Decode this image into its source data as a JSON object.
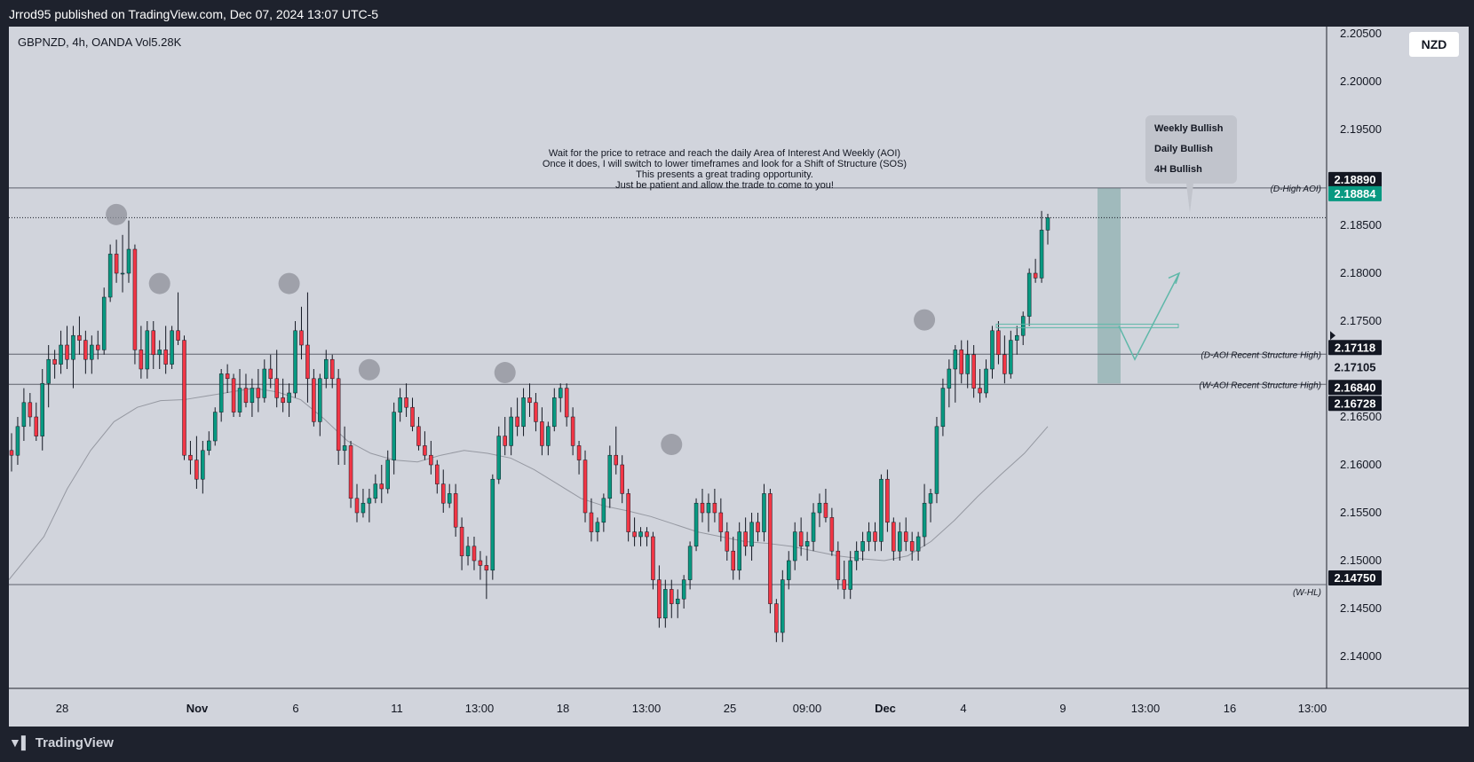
{
  "header": {
    "published_by": "Jrrod95 published on TradingView.com, Dec 07, 2024 13:07 UTC-5"
  },
  "symbol_line": "GBPNZD, 4h, OANDA  Vol5.28K",
  "currency": "NZD",
  "footer": {
    "brand": "TradingView",
    "brand_icon": "tradingview-logo-icon"
  },
  "colors": {
    "bull": "#089981",
    "bear": "#f23645",
    "background": "#d1d4dc",
    "frame": "#1e222d",
    "ma": "#9598a1",
    "arrow": "#5fb8a9",
    "zone": "#7fa9a6"
  },
  "chart_data": {
    "type": "candlestick",
    "title": "",
    "ylim": [
      2.1385,
      2.2075
    ],
    "y_ticks": [
      "2.20500",
      "2.20000",
      "2.19500",
      "2.19000",
      "2.18500",
      "2.18000",
      "2.17500",
      "2.17000",
      "2.16500",
      "2.16000",
      "2.15500",
      "2.15000",
      "2.14500",
      "2.14000"
    ],
    "x_ticks": [
      "28",
      "Nov",
      "6",
      "11",
      "13:00",
      "18",
      "13:00",
      "25",
      "09:00",
      "Dec",
      "4",
      "9",
      "13:00",
      "16",
      "13:00"
    ],
    "ohlc": [
      [
        2.1615,
        2.1633,
        2.1593,
        2.161
      ],
      [
        2.161,
        2.165,
        2.16,
        2.164
      ],
      [
        2.164,
        2.168,
        2.1625,
        2.1665
      ],
      [
        2.1665,
        2.1675,
        2.164,
        2.165
      ],
      [
        2.165,
        2.1665,
        2.1625,
        2.163
      ],
      [
        2.163,
        2.17,
        2.1615,
        2.1685
      ],
      [
        2.1685,
        2.1725,
        2.166,
        2.171
      ],
      [
        2.171,
        2.172,
        2.169,
        2.1705
      ],
      [
        2.1705,
        2.174,
        2.1695,
        2.1725
      ],
      [
        2.1725,
        2.1745,
        2.17,
        2.171
      ],
      [
        2.171,
        2.1745,
        2.168,
        2.1735
      ],
      [
        2.1735,
        2.1755,
        2.1715,
        2.173
      ],
      [
        2.173,
        2.174,
        2.1695,
        2.171
      ],
      [
        2.171,
        2.1735,
        2.1695,
        2.1725
      ],
      [
        2.1725,
        2.174,
        2.171,
        2.172
      ],
      [
        2.172,
        2.1785,
        2.1715,
        2.1775
      ],
      [
        2.1775,
        2.183,
        2.177,
        2.182
      ],
      [
        2.182,
        2.1835,
        2.179,
        2.18
      ],
      [
        2.18,
        2.184,
        2.178,
        2.18
      ],
      [
        2.18,
        2.1855,
        2.179,
        2.1825
      ],
      [
        2.1825,
        2.183,
        2.1705,
        2.172
      ],
      [
        2.172,
        2.1745,
        2.169,
        2.17
      ],
      [
        2.17,
        2.175,
        2.169,
        2.174
      ],
      [
        2.174,
        2.175,
        2.17,
        2.1715
      ],
      [
        2.1715,
        2.173,
        2.17,
        2.172
      ],
      [
        2.172,
        2.1745,
        2.1695,
        2.1705
      ],
      [
        2.1705,
        2.1745,
        2.17,
        2.174
      ],
      [
        2.174,
        2.178,
        2.1725,
        2.173
      ],
      [
        2.173,
        2.1735,
        2.1605,
        2.161
      ],
      [
        2.161,
        2.1625,
        2.159,
        2.1605
      ],
      [
        2.1605,
        2.163,
        2.1575,
        2.1585
      ],
      [
        2.1585,
        2.1625,
        2.157,
        2.1615
      ],
      [
        2.1615,
        2.1635,
        2.161,
        2.1625
      ],
      [
        2.1625,
        2.166,
        2.162,
        2.1655
      ],
      [
        2.1655,
        2.17,
        2.1645,
        2.1695
      ],
      [
        2.1695,
        2.1705,
        2.1675,
        2.169
      ],
      [
        2.169,
        2.1695,
        2.165,
        2.1655
      ],
      [
        2.1655,
        2.17,
        2.165,
        2.168
      ],
      [
        2.168,
        2.1695,
        2.166,
        2.1665
      ],
      [
        2.1665,
        2.169,
        2.165,
        2.168
      ],
      [
        2.168,
        2.17,
        2.1655,
        2.167
      ],
      [
        2.167,
        2.171,
        2.1665,
        2.17
      ],
      [
        2.17,
        2.1715,
        2.168,
        2.169
      ],
      [
        2.169,
        2.172,
        2.166,
        2.167
      ],
      [
        2.167,
        2.169,
        2.1655,
        2.1665
      ],
      [
        2.1665,
        2.1685,
        2.165,
        2.1675
      ],
      [
        2.1675,
        2.175,
        2.167,
        2.174
      ],
      [
        2.174,
        2.1765,
        2.171,
        2.1725
      ],
      [
        2.1725,
        2.178,
        2.1665,
        2.169
      ],
      [
        2.169,
        2.17,
        2.164,
        2.1645
      ],
      [
        2.1645,
        2.1695,
        2.163,
        2.169
      ],
      [
        2.169,
        2.172,
        2.168,
        2.171
      ],
      [
        2.171,
        2.1715,
        2.168,
        2.169
      ],
      [
        2.169,
        2.17,
        2.16,
        2.1615
      ],
      [
        2.1615,
        2.164,
        2.16,
        2.162
      ],
      [
        2.162,
        2.1625,
        2.1555,
        2.1565
      ],
      [
        2.1565,
        2.158,
        2.154,
        2.155
      ],
      [
        2.155,
        2.1575,
        2.1545,
        2.156
      ],
      [
        2.156,
        2.1575,
        2.154,
        2.1565
      ],
      [
        2.1565,
        2.159,
        2.156,
        2.158
      ],
      [
        2.158,
        2.16,
        2.156,
        2.1575
      ],
      [
        2.1575,
        2.1615,
        2.157,
        2.1605
      ],
      [
        2.1605,
        2.1665,
        2.159,
        2.1655
      ],
      [
        2.1655,
        2.168,
        2.1645,
        2.167
      ],
      [
        2.167,
        2.1685,
        2.165,
        2.166
      ],
      [
        2.166,
        2.167,
        2.1635,
        2.164
      ],
      [
        2.164,
        2.165,
        2.1615,
        2.162
      ],
      [
        2.162,
        2.1635,
        2.1605,
        2.161
      ],
      [
        2.161,
        2.1625,
        2.159,
        2.16
      ],
      [
        2.16,
        2.1605,
        2.157,
        2.158
      ],
      [
        2.158,
        2.1595,
        2.155,
        2.156
      ],
      [
        2.156,
        2.158,
        2.1555,
        2.157
      ],
      [
        2.157,
        2.158,
        2.1525,
        2.1535
      ],
      [
        2.1535,
        2.1545,
        2.149,
        2.1505
      ],
      [
        2.1505,
        2.1525,
        2.1495,
        2.1515
      ],
      [
        2.1515,
        2.1525,
        2.149,
        2.15
      ],
      [
        2.15,
        2.151,
        2.148,
        2.1495
      ],
      [
        2.1495,
        2.1505,
        2.146,
        2.149
      ],
      [
        2.149,
        2.159,
        2.148,
        2.1585
      ],
      [
        2.1585,
        2.164,
        2.158,
        2.163
      ],
      [
        2.163,
        2.165,
        2.161,
        2.162
      ],
      [
        2.162,
        2.166,
        2.161,
        2.165
      ],
      [
        2.165,
        2.167,
        2.163,
        2.164
      ],
      [
        2.164,
        2.168,
        2.163,
        2.167
      ],
      [
        2.167,
        2.1685,
        2.165,
        2.1665
      ],
      [
        2.1665,
        2.1675,
        2.1635,
        2.1645
      ],
      [
        2.1645,
        2.166,
        2.161,
        2.162
      ],
      [
        2.162,
        2.1645,
        2.161,
        2.164
      ],
      [
        2.164,
        2.168,
        2.1635,
        2.167
      ],
      [
        2.167,
        2.1685,
        2.1655,
        2.168
      ],
      [
        2.168,
        2.1685,
        2.164,
        2.165
      ],
      [
        2.165,
        2.166,
        2.161,
        2.162
      ],
      [
        2.162,
        2.1625,
        2.159,
        2.1605
      ],
      [
        2.1605,
        2.1615,
        2.154,
        2.155
      ],
      [
        2.155,
        2.1565,
        2.152,
        2.153
      ],
      [
        2.153,
        2.1545,
        2.152,
        2.154
      ],
      [
        2.154,
        2.157,
        2.153,
        2.1565
      ],
      [
        2.1565,
        2.162,
        2.1555,
        2.161
      ],
      [
        2.161,
        2.164,
        2.159,
        2.16
      ],
      [
        2.16,
        2.161,
        2.156,
        2.157
      ],
      [
        2.157,
        2.1575,
        2.152,
        2.153
      ],
      [
        2.153,
        2.1545,
        2.1515,
        2.1525
      ],
      [
        2.1525,
        2.1535,
        2.1515,
        2.153
      ],
      [
        2.153,
        2.1535,
        2.1515,
        2.1525
      ],
      [
        2.1525,
        2.153,
        2.147,
        2.148
      ],
      [
        2.148,
        2.1495,
        2.143,
        2.144
      ],
      [
        2.144,
        2.148,
        2.143,
        2.147
      ],
      [
        2.147,
        2.148,
        2.144,
        2.1455
      ],
      [
        2.1455,
        2.147,
        2.144,
        2.146
      ],
      [
        2.146,
        2.1485,
        2.145,
        2.148
      ],
      [
        2.148,
        2.152,
        2.147,
        2.1515
      ],
      [
        2.1515,
        2.1565,
        2.151,
        2.156
      ],
      [
        2.156,
        2.1575,
        2.154,
        2.155
      ],
      [
        2.155,
        2.157,
        2.153,
        2.156
      ],
      [
        2.156,
        2.1575,
        2.154,
        2.155
      ],
      [
        2.155,
        2.1565,
        2.152,
        2.153
      ],
      [
        2.153,
        2.154,
        2.15,
        2.151
      ],
      [
        2.151,
        2.1525,
        2.148,
        2.149
      ],
      [
        2.149,
        2.154,
        2.148,
        2.153
      ],
      [
        2.153,
        2.1545,
        2.1505,
        2.1515
      ],
      [
        2.1515,
        2.155,
        2.15,
        2.154
      ],
      [
        2.154,
        2.155,
        2.152,
        2.153
      ],
      [
        2.153,
        2.158,
        2.152,
        2.157
      ],
      [
        2.157,
        2.1575,
        2.1445,
        2.1455
      ],
      [
        2.1455,
        2.146,
        2.1415,
        2.1425
      ],
      [
        2.1425,
        2.149,
        2.1415,
        2.148
      ],
      [
        2.148,
        2.151,
        2.147,
        2.15
      ],
      [
        2.15,
        2.154,
        2.149,
        2.153
      ],
      [
        2.153,
        2.1545,
        2.1505,
        2.1515
      ],
      [
        2.1515,
        2.153,
        2.15,
        2.152
      ],
      [
        2.152,
        2.156,
        2.151,
        2.155
      ],
      [
        2.155,
        2.157,
        2.1535,
        2.156
      ],
      [
        2.156,
        2.1575,
        2.154,
        2.1545
      ],
      [
        2.1545,
        2.1555,
        2.1505,
        2.151
      ],
      [
        2.151,
        2.152,
        2.147,
        2.148
      ],
      [
        2.148,
        2.15,
        2.146,
        2.147
      ],
      [
        2.147,
        2.151,
        2.146,
        2.15
      ],
      [
        2.15,
        2.152,
        2.149,
        2.151
      ],
      [
        2.151,
        2.153,
        2.15,
        2.152
      ],
      [
        2.152,
        2.154,
        2.151,
        2.153
      ],
      [
        2.153,
        2.154,
        2.151,
        2.152
      ],
      [
        2.152,
        2.159,
        2.151,
        2.1585
      ],
      [
        2.1585,
        2.1595,
        2.153,
        2.154
      ],
      [
        2.154,
        2.1545,
        2.15,
        2.151
      ],
      [
        2.151,
        2.154,
        2.15,
        2.153
      ],
      [
        2.153,
        2.1545,
        2.151,
        2.152
      ],
      [
        2.152,
        2.153,
        2.15,
        2.151
      ],
      [
        2.151,
        2.153,
        2.15,
        2.1525
      ],
      [
        2.1525,
        2.158,
        2.1515,
        2.156
      ],
      [
        2.156,
        2.1575,
        2.154,
        2.157
      ],
      [
        2.157,
        2.165,
        2.156,
        2.164
      ],
      [
        2.164,
        2.169,
        2.163,
        2.168
      ],
      [
        2.168,
        2.171,
        2.166,
        2.17
      ],
      [
        2.17,
        2.1725,
        2.1665,
        2.172
      ],
      [
        2.172,
        2.173,
        2.1685,
        2.1695
      ],
      [
        2.1695,
        2.173,
        2.168,
        2.1715
      ],
      [
        2.1715,
        2.1725,
        2.167,
        2.168
      ],
      [
        2.168,
        2.17,
        2.1665,
        2.1675
      ],
      [
        2.1675,
        2.171,
        2.167,
        2.17
      ],
      [
        2.17,
        2.1745,
        2.169,
        2.174
      ],
      [
        2.174,
        2.175,
        2.1705,
        2.1715
      ],
      [
        2.1715,
        2.1735,
        2.1685,
        2.1695
      ],
      [
        2.1695,
        2.174,
        2.169,
        2.173
      ],
      [
        2.173,
        2.1745,
        2.1715,
        2.1735
      ],
      [
        2.1735,
        2.176,
        2.1725,
        2.1755
      ],
      [
        2.1755,
        2.1805,
        2.1745,
        2.18
      ],
      [
        2.18,
        2.1815,
        2.179,
        2.1795
      ],
      [
        2.1795,
        2.1865,
        2.179,
        2.1845
      ],
      [
        2.1845,
        2.1862,
        2.183,
        2.1858
      ]
    ],
    "ma": [
      [
        0,
        2.148
      ],
      [
        15,
        2.1525
      ],
      [
        25,
        2.1575
      ],
      [
        35,
        2.1615
      ],
      [
        45,
        2.1645
      ],
      [
        55,
        2.166
      ],
      [
        65,
        2.1667
      ],
      [
        75,
        2.1668
      ],
      [
        85,
        2.1672
      ],
      [
        95,
        2.1676
      ],
      [
        105,
        2.168
      ],
      [
        115,
        2.1676
      ],
      [
        125,
        2.1668
      ],
      [
        135,
        2.1648
      ],
      [
        145,
        2.1625
      ],
      [
        155,
        2.1612
      ],
      [
        165,
        2.1605
      ],
      [
        175,
        2.1603
      ],
      [
        185,
        2.161
      ],
      [
        195,
        2.1615
      ],
      [
        205,
        2.1612
      ],
      [
        215,
        2.1607
      ],
      [
        225,
        2.1595
      ],
      [
        235,
        2.158
      ],
      [
        245,
        2.1565
      ],
      [
        255,
        2.1557
      ],
      [
        265,
        2.1552
      ],
      [
        275,
        2.1546
      ],
      [
        285,
        2.1538
      ],
      [
        295,
        2.153
      ],
      [
        305,
        2.1525
      ],
      [
        315,
        2.152
      ],
      [
        325,
        2.1518
      ],
      [
        335,
        2.1515
      ],
      [
        345,
        2.151
      ],
      [
        355,
        2.1505
      ],
      [
        365,
        2.1502
      ],
      [
        375,
        2.15
      ],
      [
        385,
        2.1505
      ],
      [
        395,
        2.152
      ],
      [
        405,
        2.1542
      ],
      [
        415,
        2.1567
      ],
      [
        425,
        2.159
      ],
      [
        435,
        2.1612
      ],
      [
        445,
        2.164
      ]
    ],
    "levels": [
      {
        "name": "D-High AOI",
        "label": "(D-High AOI)",
        "price": 2.1889,
        "tag": "2.18890"
      },
      {
        "name": "current",
        "label": "",
        "price": 2.18884,
        "tag": "2.18884"
      },
      {
        "name": "D-AOI Recent Structure High",
        "label": "(D-AOI Recent Structure High)",
        "price": 2.17118,
        "tag": "2.17118"
      },
      {
        "name": "W-AOI Recent Structure High",
        "label": "(W-AOI Recent Structure High)",
        "price": 2.17105,
        "tag": "2.17105"
      },
      {
        "name": "W-HL",
        "label": "(W-HL)",
        "price": 2.1475,
        "tag": "2.14750"
      }
    ],
    "extra_price_tags": [
      "2.16840",
      "2.16728"
    ],
    "dotted_level": 2.1858,
    "annotation": [
      "Wait for the price to retrace and reach the daily Area of Interest And Weekly (AOI)",
      "Once it does, I will switch to lower timeframes and look for a Shift of Structure (SOS)",
      "This presents a great trading opportunity.",
      "Just be patient and allow the trade to come to you!"
    ],
    "bias_box": [
      "Weekly Bullish",
      "Daily Bullish",
      "4H Bullish"
    ],
    "swing_markers": [
      [
        17,
        2.1852
      ],
      [
        24,
        2.178
      ],
      [
        45,
        2.178
      ],
      [
        58,
        2.169
      ],
      [
        80,
        2.1687
      ],
      [
        107,
        2.1612
      ],
      [
        148,
        2.1742
      ]
    ]
  }
}
